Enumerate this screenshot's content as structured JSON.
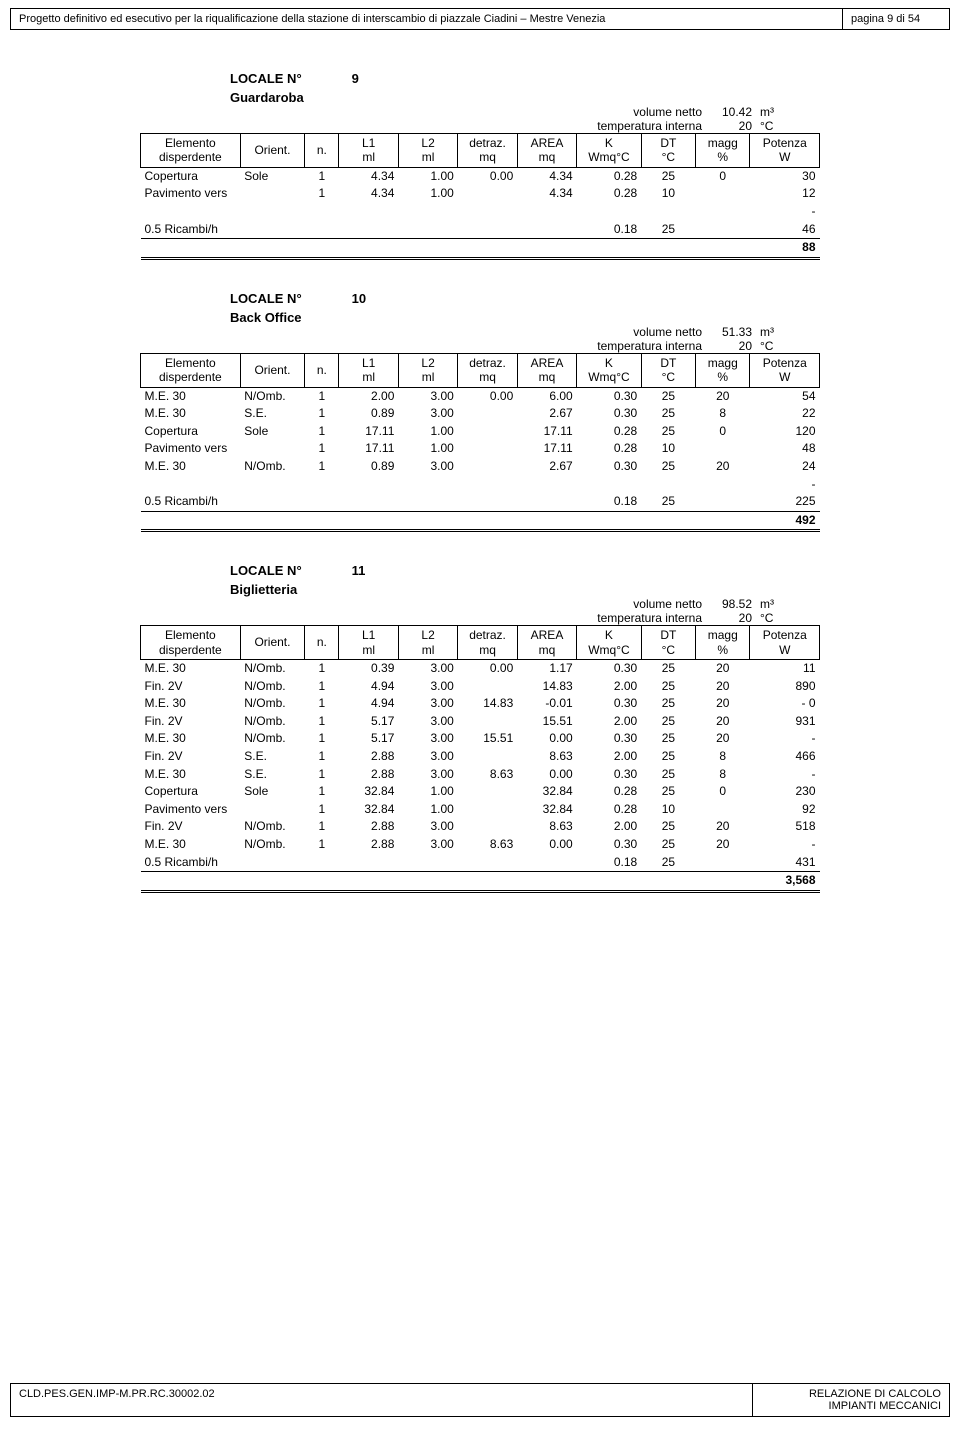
{
  "header": {
    "title": "Progetto definitivo ed esecutivo per la riqualificazione della stazione di interscambio di piazzale Ciadini – Mestre Venezia",
    "page": "pagina 9 di 54"
  },
  "footer": {
    "code": "CLD.PES.GEN.IMP-M.PR.RC.30002.02",
    "line1": "RELAZIONE DI CALCOLO",
    "line2": "IMPIANTI MECCANICI"
  },
  "columns": {
    "el1": "Elemento",
    "el2": "disperdente",
    "or": "Orient.",
    "n": "n.",
    "l1a": "L1",
    "l1b": "ml",
    "l2a": "L2",
    "l2b": "ml",
    "dea": "detraz.",
    "deb": "mq",
    "ara": "AREA",
    "arb": "mq",
    "ka": "K",
    "kb": "Wmq°C",
    "dta": "DT",
    "dtb": "°C",
    "mga": "magg",
    "mgb": "%",
    "pwa": "Potenza",
    "pwb": "W"
  },
  "meta_labels": {
    "vol": "volume netto",
    "temp": "temperatura interna",
    "vol_unit": "m³",
    "temp_unit": "°C",
    "locale_no": "LOCALE N°"
  },
  "blocks": [
    {
      "num": "9",
      "name": "Guardaroba",
      "volume": "10.42",
      "temp": "20",
      "rows": [
        {
          "el": "Copertura",
          "or": "Sole",
          "n": "1",
          "l1": "4.34",
          "l2": "1.00",
          "de": "0.00",
          "ar": "4.34",
          "k": "0.28",
          "dt": "25",
          "mg": "0",
          "pw": "30"
        },
        {
          "el": "Pavimento vers",
          "or": "",
          "n": "1",
          "l1": "4.34",
          "l2": "1.00",
          "de": "",
          "ar": "4.34",
          "k": "0.28",
          "dt": "10",
          "mg": "",
          "pw": "12"
        },
        {
          "el": "",
          "or": "",
          "n": "",
          "l1": "",
          "l2": "",
          "de": "",
          "ar": "",
          "k": "",
          "dt": "",
          "mg": "",
          "pw": "-"
        },
        {
          "el": "0.5 Ricambi/h",
          "or": "",
          "n": "",
          "l1": "",
          "l2": "",
          "de": "",
          "ar": "",
          "k": "0.18",
          "dt": "25",
          "mg": "",
          "pw": "46"
        }
      ],
      "total": "88"
    },
    {
      "num": "10",
      "name": "Back Office",
      "volume": "51.33",
      "temp": "20",
      "rows": [
        {
          "el": "M.E. 30",
          "or": "N/Omb.",
          "n": "1",
          "l1": "2.00",
          "l2": "3.00",
          "de": "0.00",
          "ar": "6.00",
          "k": "0.30",
          "dt": "25",
          "mg": "20",
          "pw": "54"
        },
        {
          "el": "M.E. 30",
          "or": "S.E.",
          "n": "1",
          "l1": "0.89",
          "l2": "3.00",
          "de": "",
          "ar": "2.67",
          "k": "0.30",
          "dt": "25",
          "mg": "8",
          "pw": "22"
        },
        {
          "el": "Copertura",
          "or": "Sole",
          "n": "1",
          "l1": "17.11",
          "l2": "1.00",
          "de": "",
          "ar": "17.11",
          "k": "0.28",
          "dt": "25",
          "mg": "0",
          "pw": "120"
        },
        {
          "el": "Pavimento vers",
          "or": "",
          "n": "1",
          "l1": "17.11",
          "l2": "1.00",
          "de": "",
          "ar": "17.11",
          "k": "0.28",
          "dt": "10",
          "mg": "",
          "pw": "48"
        },
        {
          "el": "M.E. 30",
          "or": "N/Omb.",
          "n": "1",
          "l1": "0.89",
          "l2": "3.00",
          "de": "",
          "ar": "2.67",
          "k": "0.30",
          "dt": "25",
          "mg": "20",
          "pw": "24"
        },
        {
          "el": "",
          "or": "",
          "n": "",
          "l1": "",
          "l2": "",
          "de": "",
          "ar": "",
          "k": "",
          "dt": "",
          "mg": "",
          "pw": "-"
        },
        {
          "el": "0.5 Ricambi/h",
          "or": "",
          "n": "",
          "l1": "",
          "l2": "",
          "de": "",
          "ar": "",
          "k": "0.18",
          "dt": "25",
          "mg": "",
          "pw": "225"
        }
      ],
      "total": "492"
    },
    {
      "num": "11",
      "name": "Biglietteria",
      "volume": "98.52",
      "temp": "20",
      "rows": [
        {
          "el": "M.E. 30",
          "or": "N/Omb.",
          "n": "1",
          "l1": "0.39",
          "l2": "3.00",
          "de": "0.00",
          "ar": "1.17",
          "k": "0.30",
          "dt": "25",
          "mg": "20",
          "pw": "11"
        },
        {
          "el": "Fin. 2V",
          "or": "N/Omb.",
          "n": "1",
          "l1": "4.94",
          "l2": "3.00",
          "de": "",
          "ar": "14.83",
          "k": "2.00",
          "dt": "25",
          "mg": "20",
          "pw": "890"
        },
        {
          "el": "M.E. 30",
          "or": "N/Omb.",
          "n": "1",
          "l1": "4.94",
          "l2": "3.00",
          "de": "14.83",
          "ar": "-0.01",
          "k": "0.30",
          "dt": "25",
          "mg": "20",
          "pw": "-       0"
        },
        {
          "el": "Fin. 2V",
          "or": "N/Omb.",
          "n": "1",
          "l1": "5.17",
          "l2": "3.00",
          "de": "",
          "ar": "15.51",
          "k": "2.00",
          "dt": "25",
          "mg": "20",
          "pw": "931"
        },
        {
          "el": "M.E. 30",
          "or": "N/Omb.",
          "n": "1",
          "l1": "5.17",
          "l2": "3.00",
          "de": "15.51",
          "ar": "0.00",
          "k": "0.30",
          "dt": "25",
          "mg": "20",
          "pw": "-"
        },
        {
          "el": "Fin. 2V",
          "or": "S.E.",
          "n": "1",
          "l1": "2.88",
          "l2": "3.00",
          "de": "",
          "ar": "8.63",
          "k": "2.00",
          "dt": "25",
          "mg": "8",
          "pw": "466"
        },
        {
          "el": "M.E. 30",
          "or": "S.E.",
          "n": "1",
          "l1": "2.88",
          "l2": "3.00",
          "de": "8.63",
          "ar": "0.00",
          "k": "0.30",
          "dt": "25",
          "mg": "8",
          "pw": "-"
        },
        {
          "el": "Copertura",
          "or": "Sole",
          "n": "1",
          "l1": "32.84",
          "l2": "1.00",
          "de": "",
          "ar": "32.84",
          "k": "0.28",
          "dt": "25",
          "mg": "0",
          "pw": "230"
        },
        {
          "el": "Pavimento vers",
          "or": "",
          "n": "1",
          "l1": "32.84",
          "l2": "1.00",
          "de": "",
          "ar": "32.84",
          "k": "0.28",
          "dt": "10",
          "mg": "",
          "pw": "92"
        },
        {
          "el": "Fin. 2V",
          "or": "N/Omb.",
          "n": "1",
          "l1": "2.88",
          "l2": "3.00",
          "de": "",
          "ar": "8.63",
          "k": "2.00",
          "dt": "25",
          "mg": "20",
          "pw": "518"
        },
        {
          "el": "M.E. 30",
          "or": "N/Omb.",
          "n": "1",
          "l1": "2.88",
          "l2": "3.00",
          "de": "8.63",
          "ar": "0.00",
          "k": "0.30",
          "dt": "25",
          "mg": "20",
          "pw": "-"
        },
        {
          "el": "0.5 Ricambi/h",
          "or": "",
          "n": "",
          "l1": "",
          "l2": "",
          "de": "",
          "ar": "",
          "k": "0.18",
          "dt": "25",
          "mg": "",
          "pw": "431"
        }
      ],
      "total": "3,568"
    }
  ]
}
